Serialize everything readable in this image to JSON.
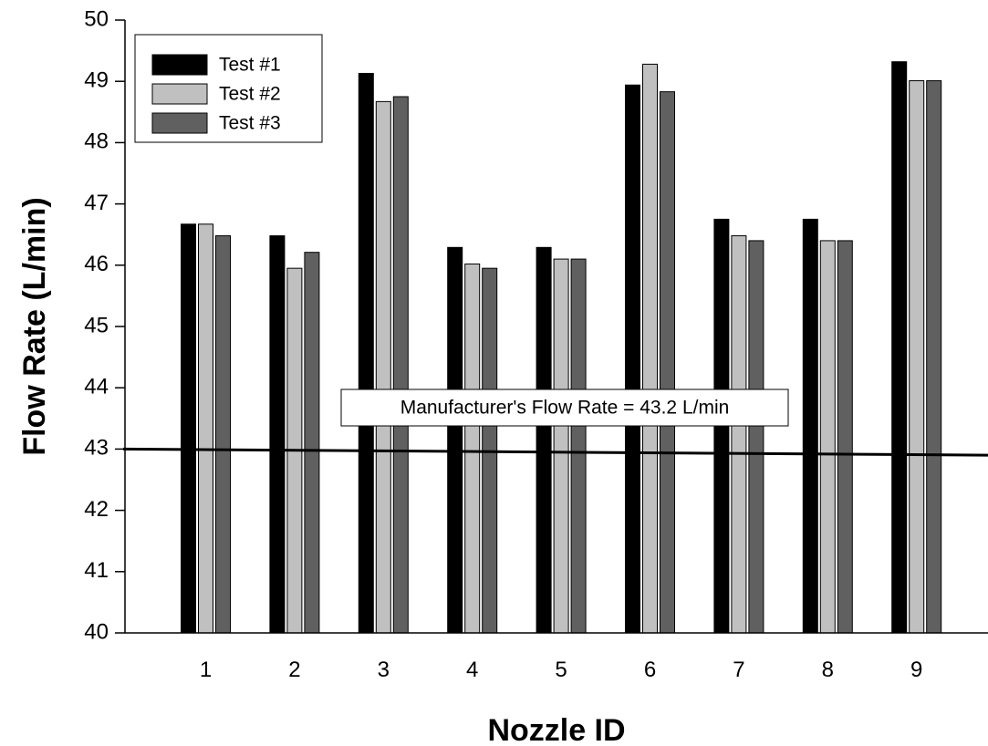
{
  "chart_data": {
    "type": "bar",
    "xlabel": "Nozzle ID",
    "ylabel": "Flow  Rate (L/min)",
    "categories": [
      "1",
      "2",
      "3",
      "4",
      "5",
      "6",
      "7",
      "8",
      "9"
    ],
    "ylim": [
      40,
      50
    ],
    "yticks": [
      40,
      41,
      42,
      43,
      44,
      45,
      46,
      47,
      48,
      49,
      50
    ],
    "grid": false,
    "legend_position": "top-left",
    "series": [
      {
        "name": "Test #1",
        "color": "#000000",
        "values": [
          46.67,
          46.48,
          49.13,
          46.29,
          46.29,
          48.94,
          46.75,
          46.75,
          49.32
        ]
      },
      {
        "name": "Test #2",
        "color": "#c0c0c0",
        "values": [
          46.67,
          45.95,
          48.67,
          46.02,
          46.1,
          49.28,
          46.48,
          46.4,
          49.01
        ]
      },
      {
        "name": "Test #3",
        "color": "#606060",
        "values": [
          46.48,
          46.21,
          48.75,
          45.95,
          46.1,
          48.83,
          46.4,
          46.4,
          49.01
        ]
      }
    ],
    "reference_line": {
      "start_value": 43.0,
      "end_value": 42.9
    },
    "annotation": "Manufacturer's Flow Rate = 43.2 L/min"
  }
}
